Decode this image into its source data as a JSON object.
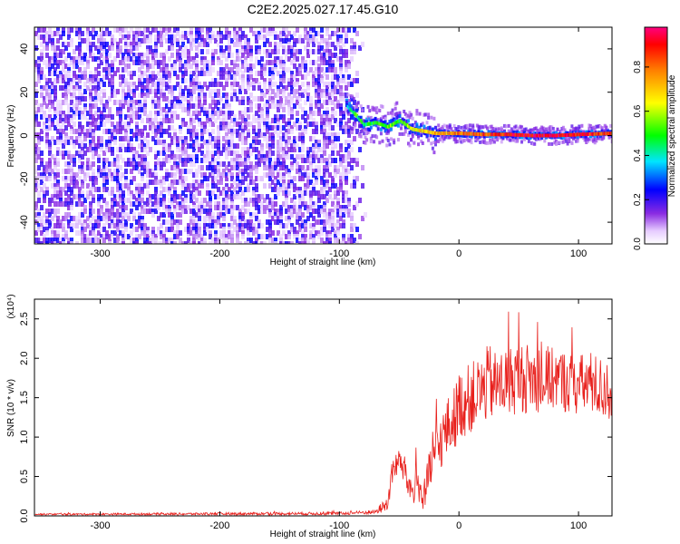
{
  "title": "C2E2.2025.027.17.45.G10",
  "chart_data": [
    {
      "type": "heatmap",
      "xlabel": "Height of straight line (km)",
      "ylabel": "Frequency (Hz)",
      "xlim": [
        -355,
        128
      ],
      "ylim": [
        -50,
        50
      ],
      "xticks": [
        -300,
        -200,
        -100,
        0,
        100
      ],
      "yticks": [
        -40,
        -20,
        0,
        20,
        40
      ],
      "colorbar": {
        "label": "Normalized spectral amplitude",
        "range": [
          0.0,
          0.98
        ],
        "ticks": [
          0.0,
          0.2,
          0.4,
          0.6,
          0.8
        ]
      },
      "noise_region_x": [
        -355,
        -85
      ],
      "signal_trace": {
        "x": [
          -95,
          -88,
          -80,
          -70,
          -60,
          -50,
          -40,
          -30,
          -20,
          -10,
          0,
          20,
          40,
          60,
          80,
          100,
          128
        ],
        "y": [
          14,
          10,
          5,
          6,
          4,
          7,
          3,
          2,
          1,
          1,
          1,
          0.5,
          0.5,
          0,
          0,
          0.5,
          1
        ],
        "amplitude": [
          0.35,
          0.5,
          0.45,
          0.5,
          0.55,
          0.5,
          0.6,
          0.7,
          0.75,
          0.75,
          0.8,
          0.85,
          0.9,
          0.95,
          0.95,
          0.9,
          0.85
        ]
      }
    },
    {
      "type": "line",
      "xlabel": "Height of straight line (km)",
      "ylabel": "SNR (10 * v/v)",
      "y_multiplier": "(x10⁴)",
      "xlim": [
        -355,
        128
      ],
      "ylim": [
        0,
        2.75
      ],
      "xticks": [
        -300,
        -200,
        -100,
        0,
        100
      ],
      "yticks": [
        0.0,
        0.5,
        1.0,
        1.5,
        2.0,
        2.5
      ],
      "color": "#e8201c",
      "series": [
        {
          "x": [
            -355,
            -100,
            -85,
            -70,
            -60,
            -55,
            -50,
            -45,
            -40,
            -35,
            -30,
            -25,
            -20,
            -15,
            -10,
            -5,
            0,
            10,
            20,
            25,
            30,
            40,
            50,
            60,
            70,
            80,
            90,
            100,
            110,
            120,
            128
          ],
          "y": [
            0.02,
            0.03,
            0.04,
            0.05,
            0.15,
            0.6,
            0.7,
            0.55,
            0.3,
            0.45,
            0.2,
            0.5,
            0.8,
            0.95,
            1.1,
            1.2,
            1.4,
            1.5,
            1.6,
            1.7,
            1.65,
            1.7,
            1.75,
            1.75,
            1.7,
            1.75,
            1.7,
            1.65,
            1.7,
            1.6,
            1.6
          ],
          "spread": [
            0.01,
            0.02,
            0.02,
            0.03,
            0.1,
            0.2,
            0.15,
            0.2,
            0.25,
            0.2,
            0.2,
            0.3,
            0.35,
            0.35,
            0.4,
            0.4,
            0.45,
            0.45,
            0.45,
            0.5,
            0.45,
            0.45,
            0.45,
            0.45,
            0.4,
            0.4,
            0.4,
            0.4,
            0.4,
            0.4,
            0.4
          ]
        }
      ]
    }
  ]
}
